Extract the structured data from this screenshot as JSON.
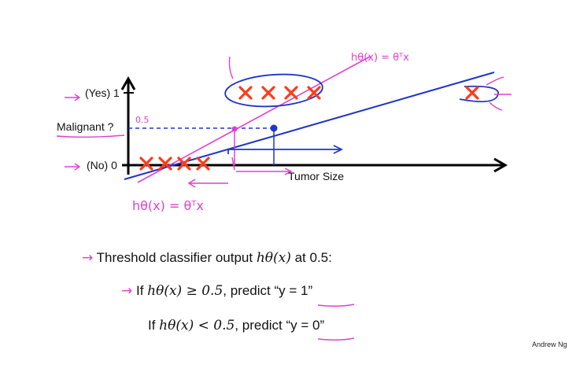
{
  "axes": {
    "y_yes": "(Yes) 1",
    "y_no": "(No) 0",
    "y_label": "Malignant ?",
    "x_label": "Tumor Size",
    "threshold_tick": "0.5"
  },
  "annotations": {
    "hyp_top": "hθ(x) = θᵀx",
    "hyp_bottom": "hθ(x) = θᵀx"
  },
  "text": {
    "line1_pre": "Threshold classifier output ",
    "line1_math": "hθ(x)",
    "line1_post": " at 0.5:",
    "line2_pre": "If ",
    "line2_math": "hθ(x) ≥ 0.5",
    "line2_post": ", predict “y = 1”",
    "line3_pre": "If ",
    "line3_math": "hθ(x) < 0.5",
    "line3_post": ", predict “y = 0”"
  },
  "credit": "Andrew Ng",
  "colors": {
    "cross": "#ff3b1a",
    "pen_blue": "#1f35c8",
    "pen_pink": "#e040d0"
  },
  "chart_data": {
    "type": "scatter",
    "xlabel": "Tumor Size",
    "ylabel": "Malignant ?",
    "yticks": [
      "(No) 0",
      "(Yes) 1"
    ],
    "series": [
      {
        "values": [
          [
            1,
            0
          ],
          [
            2,
            0
          ],
          [
            3,
            0
          ],
          [
            4,
            0
          ],
          [
            7,
            1
          ],
          [
            8,
            1
          ],
          [
            9,
            1
          ],
          [
            10,
            1
          ],
          [
            20,
            1
          ]
        ]
      }
    ]
  }
}
